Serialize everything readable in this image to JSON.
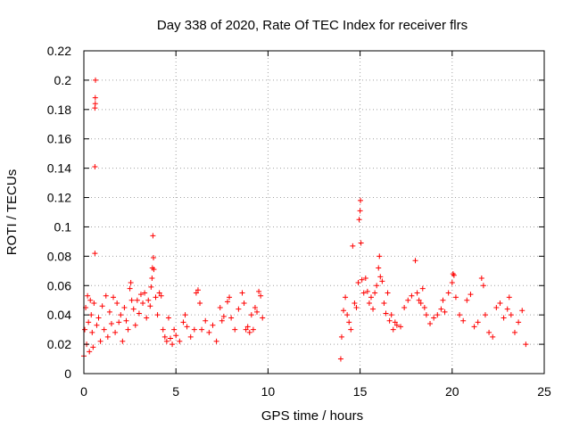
{
  "chart_data": {
    "type": "scatter",
    "title": "Day 338 of 2020, Rate Of TEC Index for receiver flrs",
    "xlabel": "GPS time / hours",
    "ylabel": "ROTI / TECUs",
    "xlim": [
      0,
      25
    ],
    "ylim": [
      0,
      0.22
    ],
    "xticks": [
      "0",
      "5",
      "10",
      "15",
      "20",
      "25"
    ],
    "yticks": [
      "0",
      "0.02",
      "0.04",
      "0.06",
      "0.08",
      "0.1",
      "0.12",
      "0.14",
      "0.16",
      "0.18",
      "0.2",
      "0.22"
    ],
    "grid": true,
    "marker": "+",
    "color": "#ff0000",
    "series": [
      {
        "points": [
          [
            0.0,
            0.012
          ],
          [
            0.05,
            0.03
          ],
          [
            0.1,
            0.045
          ],
          [
            0.15,
            0.02
          ],
          [
            0.2,
            0.053
          ],
          [
            0.25,
            0.035
          ],
          [
            0.3,
            0.015
          ],
          [
            0.35,
            0.05
          ],
          [
            0.4,
            0.04
          ],
          [
            0.45,
            0.028
          ],
          [
            0.5,
            0.018
          ],
          [
            0.55,
            0.048
          ],
          [
            0.6,
            0.082
          ],
          [
            0.6,
            0.141
          ],
          [
            0.6,
            0.181
          ],
          [
            0.62,
            0.184
          ],
          [
            0.62,
            0.188
          ],
          [
            0.63,
            0.2
          ],
          [
            0.7,
            0.033
          ],
          [
            0.8,
            0.038
          ],
          [
            0.9,
            0.022
          ],
          [
            1.0,
            0.046
          ],
          [
            1.1,
            0.03
          ],
          [
            1.2,
            0.053
          ],
          [
            1.3,
            0.025
          ],
          [
            1.4,
            0.042
          ],
          [
            1.5,
            0.034
          ],
          [
            1.6,
            0.052
          ],
          [
            1.7,
            0.028
          ],
          [
            1.8,
            0.048
          ],
          [
            1.9,
            0.035
          ],
          [
            2.0,
            0.04
          ],
          [
            2.1,
            0.022
          ],
          [
            2.2,
            0.045
          ],
          [
            2.3,
            0.036
          ],
          [
            2.4,
            0.03
          ],
          [
            2.5,
            0.058
          ],
          [
            2.55,
            0.062
          ],
          [
            2.6,
            0.05
          ],
          [
            2.7,
            0.044
          ],
          [
            2.8,
            0.033
          ],
          [
            2.9,
            0.05
          ],
          [
            3.0,
            0.041
          ],
          [
            3.1,
            0.054
          ],
          [
            3.2,
            0.048
          ],
          [
            3.3,
            0.055
          ],
          [
            3.4,
            0.038
          ],
          [
            3.5,
            0.05
          ],
          [
            3.6,
            0.046
          ],
          [
            3.65,
            0.059
          ],
          [
            3.7,
            0.065
          ],
          [
            3.72,
            0.072
          ],
          [
            3.75,
            0.094
          ],
          [
            3.78,
            0.079
          ],
          [
            3.8,
            0.071
          ],
          [
            3.9,
            0.052
          ],
          [
            4.0,
            0.04
          ],
          [
            4.1,
            0.055
          ],
          [
            4.2,
            0.053
          ],
          [
            4.3,
            0.03
          ],
          [
            4.4,
            0.025
          ],
          [
            4.5,
            0.022
          ],
          [
            4.6,
            0.038
          ],
          [
            4.7,
            0.024
          ],
          [
            4.8,
            0.02
          ],
          [
            4.9,
            0.03
          ],
          [
            5.0,
            0.026
          ],
          [
            5.2,
            0.022
          ],
          [
            5.4,
            0.035
          ],
          [
            5.5,
            0.04
          ],
          [
            5.6,
            0.032
          ],
          [
            5.8,
            0.025
          ],
          [
            6.0,
            0.03
          ],
          [
            6.1,
            0.055
          ],
          [
            6.2,
            0.057
          ],
          [
            6.3,
            0.048
          ],
          [
            6.4,
            0.03
          ],
          [
            6.6,
            0.036
          ],
          [
            6.8,
            0.028
          ],
          [
            7.0,
            0.033
          ],
          [
            7.2,
            0.022
          ],
          [
            7.4,
            0.045
          ],
          [
            7.5,
            0.036
          ],
          [
            7.6,
            0.039
          ],
          [
            7.8,
            0.049
          ],
          [
            7.9,
            0.052
          ],
          [
            8.0,
            0.038
          ],
          [
            8.2,
            0.03
          ],
          [
            8.4,
            0.044
          ],
          [
            8.6,
            0.055
          ],
          [
            8.7,
            0.048
          ],
          [
            8.8,
            0.03
          ],
          [
            8.9,
            0.032
          ],
          [
            9.0,
            0.028
          ],
          [
            9.1,
            0.04
          ],
          [
            9.2,
            0.03
          ],
          [
            9.3,
            0.045
          ],
          [
            9.4,
            0.042
          ],
          [
            9.5,
            0.056
          ],
          [
            9.6,
            0.053
          ],
          [
            9.7,
            0.038
          ],
          [
            13.95,
            0.01
          ],
          [
            14.0,
            0.025
          ],
          [
            14.1,
            0.043
          ],
          [
            14.2,
            0.052
          ],
          [
            14.3,
            0.04
          ],
          [
            14.4,
            0.035
          ],
          [
            14.5,
            0.03
          ],
          [
            14.6,
            0.087
          ],
          [
            14.7,
            0.048
          ],
          [
            14.8,
            0.045
          ],
          [
            14.9,
            0.062
          ],
          [
            14.95,
            0.105
          ],
          [
            15.0,
            0.111
          ],
          [
            15.02,
            0.118
          ],
          [
            15.05,
            0.089
          ],
          [
            15.1,
            0.064
          ],
          [
            15.2,
            0.055
          ],
          [
            15.3,
            0.065
          ],
          [
            15.4,
            0.056
          ],
          [
            15.5,
            0.048
          ],
          [
            15.6,
            0.052
          ],
          [
            15.7,
            0.044
          ],
          [
            15.8,
            0.055
          ],
          [
            15.9,
            0.06
          ],
          [
            16.0,
            0.072
          ],
          [
            16.05,
            0.08
          ],
          [
            16.1,
            0.066
          ],
          [
            16.2,
            0.063
          ],
          [
            16.3,
            0.048
          ],
          [
            16.4,
            0.041
          ],
          [
            16.5,
            0.055
          ],
          [
            16.6,
            0.036
          ],
          [
            16.7,
            0.04
          ],
          [
            16.8,
            0.03
          ],
          [
            16.9,
            0.035
          ],
          [
            17.0,
            0.033
          ],
          [
            17.2,
            0.032
          ],
          [
            17.4,
            0.045
          ],
          [
            17.6,
            0.05
          ],
          [
            17.8,
            0.053
          ],
          [
            18.0,
            0.077
          ],
          [
            18.1,
            0.055
          ],
          [
            18.2,
            0.05
          ],
          [
            18.3,
            0.048
          ],
          [
            18.4,
            0.058
          ],
          [
            18.5,
            0.045
          ],
          [
            18.6,
            0.04
          ],
          [
            18.8,
            0.034
          ],
          [
            19.0,
            0.038
          ],
          [
            19.2,
            0.04
          ],
          [
            19.4,
            0.044
          ],
          [
            19.5,
            0.05
          ],
          [
            19.6,
            0.042
          ],
          [
            19.8,
            0.055
          ],
          [
            20.0,
            0.062
          ],
          [
            20.05,
            0.068
          ],
          [
            20.1,
            0.067
          ],
          [
            20.2,
            0.052
          ],
          [
            20.4,
            0.04
          ],
          [
            20.6,
            0.036
          ],
          [
            20.8,
            0.05
          ],
          [
            21.0,
            0.054
          ],
          [
            21.2,
            0.032
          ],
          [
            21.4,
            0.035
          ],
          [
            21.6,
            0.065
          ],
          [
            21.7,
            0.06
          ],
          [
            21.8,
            0.04
          ],
          [
            22.0,
            0.028
          ],
          [
            22.2,
            0.025
          ],
          [
            22.4,
            0.045
          ],
          [
            22.6,
            0.048
          ],
          [
            22.8,
            0.038
          ],
          [
            23.0,
            0.044
          ],
          [
            23.1,
            0.052
          ],
          [
            23.2,
            0.04
          ],
          [
            23.4,
            0.028
          ],
          [
            23.6,
            0.035
          ],
          [
            23.8,
            0.043
          ],
          [
            24.0,
            0.02
          ]
        ]
      }
    ]
  }
}
